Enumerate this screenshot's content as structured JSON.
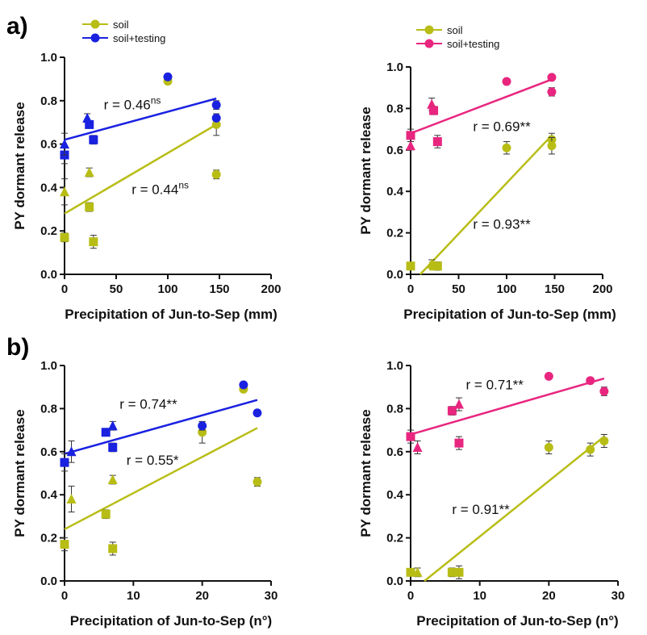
{
  "panel_labels": [
    "a)",
    "b)"
  ],
  "colors": {
    "soil": "#b8bd16",
    "soil_testing_blue": "#1a22e0",
    "soil_testing_pink": "#e8267f"
  },
  "chart_data": [
    {
      "type": "scatter",
      "panel": "a)",
      "xlabel": "Precipitation of Jun-to-Sep (mm)",
      "ylabel": "PY dormant release",
      "xlim": [
        0,
        200
      ],
      "ylim": [
        0,
        1.0
      ],
      "xticks": [
        "0",
        "50",
        "100",
        "150",
        "200"
      ],
      "yticks": [
        "0.0",
        "0.2",
        "0.4",
        "0.6",
        "0.8",
        "1.0"
      ],
      "legend": [
        "soil",
        "soil+testing"
      ],
      "series": [
        {
          "name": "soil",
          "color": "#b8bd16",
          "points": [
            {
              "x": 0,
              "y": 0.17,
              "m": "square",
              "err": 0.02
            },
            {
              "x": 0,
              "y": 0.38,
              "m": "triangle",
              "err": 0.06
            },
            {
              "x": 24,
              "y": 0.47,
              "m": "triangle",
              "err": 0.02
            },
            {
              "x": 24,
              "y": 0.31,
              "m": "square",
              "err": 0.02
            },
            {
              "x": 28,
              "y": 0.15,
              "m": "square",
              "err": 0.03
            },
            {
              "x": 100,
              "y": 0.89,
              "m": "circle",
              "err": 0.01
            },
            {
              "x": 147,
              "y": 0.69,
              "m": "circle",
              "err": 0.05
            },
            {
              "x": 147,
              "y": 0.46,
              "m": "circle",
              "err": 0.02
            }
          ],
          "fit": [
            [
              0,
              0.28
            ],
            [
              147,
              0.69
            ]
          ],
          "annotation": {
            "text": "r = 0.44",
            "sup": "ns",
            "x": 65,
            "y": 0.37
          }
        },
        {
          "name": "soil+testing",
          "color": "#1a22e0",
          "points": [
            {
              "x": 0,
              "y": 0.55,
              "m": "square",
              "err": 0.04
            },
            {
              "x": 0,
              "y": 0.6,
              "m": "triangle",
              "err": 0.05
            },
            {
              "x": 22,
              "y": 0.72,
              "m": "triangle",
              "err": 0.02
            },
            {
              "x": 24,
              "y": 0.69,
              "m": "square",
              "err": 0.01
            },
            {
              "x": 28,
              "y": 0.62,
              "m": "square",
              "err": 0.02
            },
            {
              "x": 100,
              "y": 0.91,
              "m": "circle",
              "err": 0.01
            },
            {
              "x": 147,
              "y": 0.78,
              "m": "circle",
              "err": 0.02
            },
            {
              "x": 147,
              "y": 0.72,
              "m": "circle",
              "err": 0.01
            }
          ],
          "fit": [
            [
              0,
              0.62
            ],
            [
              147,
              0.81
            ]
          ],
          "annotation": {
            "text": "r = 0.46",
            "sup": "ns",
            "x": 38,
            "y": 0.76
          }
        }
      ]
    },
    {
      "type": "scatter",
      "xlabel": "Precipitation of Jun-to-Sep (mm)",
      "ylabel": "PY dormant release",
      "xlim": [
        0,
        200
      ],
      "ylim": [
        0,
        1.0
      ],
      "xticks": [
        "0",
        "50",
        "100",
        "150",
        "200"
      ],
      "yticks": [
        "0.0",
        "0.2",
        "0.4",
        "0.6",
        "0.8",
        "1.0"
      ],
      "legend": [
        "soil",
        "soil+testing"
      ],
      "series": [
        {
          "name": "soil",
          "color": "#b8bd16",
          "points": [
            {
              "x": 0,
              "y": 0.04,
              "m": "square",
              "err": 0.01
            },
            {
              "x": 22,
              "y": 0.05,
              "m": "triangle",
              "err": 0.02
            },
            {
              "x": 24,
              "y": 0.04,
              "m": "square",
              "err": 0.01
            },
            {
              "x": 28,
              "y": 0.04,
              "m": "square",
              "err": 0.02
            },
            {
              "x": 100,
              "y": 0.61,
              "m": "circle",
              "err": 0.03
            },
            {
              "x": 147,
              "y": 0.65,
              "m": "circle",
              "err": 0.03
            },
            {
              "x": 147,
              "y": 0.62,
              "m": "circle",
              "err": 0.04
            }
          ],
          "fit": [
            [
              10,
              0.0
            ],
            [
              147,
              0.67
            ]
          ],
          "annotation": {
            "text": "r = 0.93**",
            "sup": "",
            "x": 65,
            "y": 0.22
          }
        },
        {
          "name": "soil+testing",
          "color": "#e8267f",
          "points": [
            {
              "x": 0,
              "y": 0.67,
              "m": "square",
              "err": 0.03
            },
            {
              "x": 0,
              "y": 0.62,
              "m": "triangle",
              "err": 0.02
            },
            {
              "x": 22,
              "y": 0.82,
              "m": "triangle",
              "err": 0.03
            },
            {
              "x": 24,
              "y": 0.79,
              "m": "square",
              "err": 0.02
            },
            {
              "x": 28,
              "y": 0.64,
              "m": "square",
              "err": 0.03
            },
            {
              "x": 100,
              "y": 0.93,
              "m": "circle",
              "err": 0.01
            },
            {
              "x": 147,
              "y": 0.95,
              "m": "circle",
              "err": 0.01
            },
            {
              "x": 147,
              "y": 0.88,
              "m": "circle",
              "err": 0.02
            }
          ],
          "fit": [
            [
              0,
              0.68
            ],
            [
              147,
              0.94
            ]
          ],
          "annotation": {
            "text": "r = 0.69**",
            "sup": "",
            "x": 65,
            "y": 0.69
          }
        }
      ]
    },
    {
      "type": "scatter",
      "panel": "b)",
      "xlabel": "Precipitation of Jun-to-Sep (n°)",
      "ylabel": "PY dormant release",
      "xlim": [
        0,
        30
      ],
      "ylim": [
        0,
        1.0
      ],
      "xticks": [
        "0",
        "10",
        "20",
        "30"
      ],
      "yticks": [
        "0.0",
        "0.2",
        "0.4",
        "0.6",
        "0.8",
        "1.0"
      ],
      "legend": [],
      "series": [
        {
          "name": "soil",
          "color": "#b8bd16",
          "points": [
            {
              "x": 0,
              "y": 0.17,
              "m": "square",
              "err": 0.03
            },
            {
              "x": 1,
              "y": 0.38,
              "m": "triangle",
              "err": 0.06
            },
            {
              "x": 6,
              "y": 0.31,
              "m": "square",
              "err": 0.02
            },
            {
              "x": 7,
              "y": 0.47,
              "m": "triangle",
              "err": 0.02
            },
            {
              "x": 7,
              "y": 0.15,
              "m": "square",
              "err": 0.03
            },
            {
              "x": 20,
              "y": 0.69,
              "m": "circle",
              "err": 0.05
            },
            {
              "x": 26,
              "y": 0.89,
              "m": "circle",
              "err": 0.01
            },
            {
              "x": 28,
              "y": 0.46,
              "m": "circle",
              "err": 0.02
            }
          ],
          "fit": [
            [
              0,
              0.24
            ],
            [
              28,
              0.71
            ]
          ],
          "annotation": {
            "text": "r = 0.55*",
            "sup": "",
            "x": 9,
            "y": 0.54
          }
        },
        {
          "name": "soil+testing",
          "color": "#1a22e0",
          "points": [
            {
              "x": 0,
              "y": 0.55,
              "m": "square",
              "err": 0.04
            },
            {
              "x": 1,
              "y": 0.6,
              "m": "triangle",
              "err": 0.05
            },
            {
              "x": 6,
              "y": 0.69,
              "m": "square",
              "err": 0.01
            },
            {
              "x": 7,
              "y": 0.72,
              "m": "triangle",
              "err": 0.02
            },
            {
              "x": 7,
              "y": 0.62,
              "m": "square",
              "err": 0.02
            },
            {
              "x": 20,
              "y": 0.72,
              "m": "circle",
              "err": 0.02
            },
            {
              "x": 26,
              "y": 0.91,
              "m": "circle",
              "err": 0.01
            },
            {
              "x": 28,
              "y": 0.78,
              "m": "circle",
              "err": 0.01
            }
          ],
          "fit": [
            [
              0,
              0.59
            ],
            [
              28,
              0.84
            ]
          ],
          "annotation": {
            "text": "r = 0.74**",
            "sup": "",
            "x": 8,
            "y": 0.8
          }
        }
      ]
    },
    {
      "type": "scatter",
      "xlabel": "Precipitation of Jun-to-Sep (n°)",
      "ylabel": "PY dormant release",
      "xlim": [
        0,
        30
      ],
      "ylim": [
        0,
        1.0
      ],
      "xticks": [
        "0",
        "10",
        "20",
        "30"
      ],
      "yticks": [
        "0.0",
        "0.2",
        "0.4",
        "0.6",
        "0.8",
        "1.0"
      ],
      "legend": [],
      "series": [
        {
          "name": "soil",
          "color": "#b8bd16",
          "points": [
            {
              "x": 0,
              "y": 0.04,
              "m": "square",
              "err": 0.01
            },
            {
              "x": 1,
              "y": 0.04,
              "m": "triangle",
              "err": 0.02
            },
            {
              "x": 6,
              "y": 0.04,
              "m": "square",
              "err": 0.02
            },
            {
              "x": 7,
              "y": 0.04,
              "m": "square",
              "err": 0.03
            },
            {
              "x": 20,
              "y": 0.62,
              "m": "circle",
              "err": 0.03
            },
            {
              "x": 26,
              "y": 0.61,
              "m": "circle",
              "err": 0.03
            },
            {
              "x": 28,
              "y": 0.65,
              "m": "circle",
              "err": 0.03
            }
          ],
          "fit": [
            [
              2,
              0.0
            ],
            [
              28,
              0.67
            ]
          ],
          "annotation": {
            "text": "r = 0.91**",
            "sup": "",
            "x": 6,
            "y": 0.31
          }
        },
        {
          "name": "soil+testing",
          "color": "#e8267f",
          "points": [
            {
              "x": 0,
              "y": 0.67,
              "m": "square",
              "err": 0.03
            },
            {
              "x": 1,
              "y": 0.62,
              "m": "triangle",
              "err": 0.03
            },
            {
              "x": 6,
              "y": 0.79,
              "m": "square",
              "err": 0.02
            },
            {
              "x": 7,
              "y": 0.82,
              "m": "triangle",
              "err": 0.03
            },
            {
              "x": 7,
              "y": 0.64,
              "m": "square",
              "err": 0.03
            },
            {
              "x": 20,
              "y": 0.95,
              "m": "circle",
              "err": 0.01
            },
            {
              "x": 26,
              "y": 0.93,
              "m": "circle",
              "err": 0.01
            },
            {
              "x": 28,
              "y": 0.88,
              "m": "circle",
              "err": 0.02
            }
          ],
          "fit": [
            [
              0,
              0.68
            ],
            [
              28,
              0.94
            ]
          ],
          "annotation": {
            "text": "r = 0.71**",
            "sup": "",
            "x": 8,
            "y": 0.89
          }
        }
      ]
    }
  ]
}
